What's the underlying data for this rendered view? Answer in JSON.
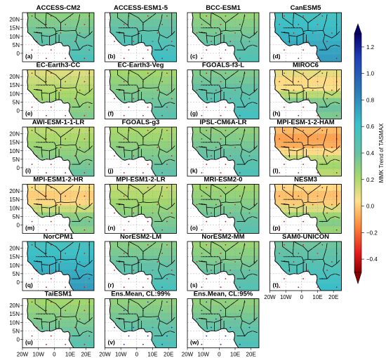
{
  "figure": {
    "colorbar": {
      "label": "MMK Trend of TASMAX",
      "ticks": [
        "1.2",
        "1.0",
        "0.8",
        "0.6",
        "0.4",
        "0.2",
        "0.0",
        "−0.2",
        "−0.4"
      ],
      "range": [
        -0.5,
        1.3
      ]
    },
    "y_ticks": [
      "20N",
      "15N",
      "10N",
      "5N",
      "0"
    ],
    "x_ticks": [
      "20W",
      "10W",
      "0",
      "10E",
      "20E"
    ],
    "panels": [
      {
        "title": "ACCESS-CM2",
        "tag": "(a)",
        "trend": 0.35
      },
      {
        "title": "ACCESS-ESM1-5",
        "tag": "(b)",
        "trend": 0.4
      },
      {
        "title": "BCC-ESM1",
        "tag": "(c)",
        "trend": 0.33
      },
      {
        "title": "CanESM5",
        "tag": "(d)",
        "trend": 0.55
      },
      {
        "title": "EC-Earth3-CC",
        "tag": "(e)",
        "trend": 0.2
      },
      {
        "title": "EC-Earth3-Veg",
        "tag": "(f)",
        "trend": 0.3
      },
      {
        "title": "FGOALS-f3-L",
        "tag": "(g)",
        "trend": 0.38
      },
      {
        "title": "MIROC6",
        "tag": "(h)",
        "trend": 0.18
      },
      {
        "title": "AWI-ESM-1-1-LR",
        "tag": "(i)",
        "trend": 0.25
      },
      {
        "title": "FGOALS-g3",
        "tag": "(j)",
        "trend": 0.28
      },
      {
        "title": "IPSL-CM6A-LR",
        "tag": "(k)",
        "trend": 0.34
      },
      {
        "title": "MPI-ESM-1-2-HAM",
        "tag": "(l)",
        "trend": 0.05
      },
      {
        "title": "MPI-ESM1-2-HR",
        "tag": "(m)",
        "trend": 0.15
      },
      {
        "title": "MPI-ESM1-2-LR",
        "tag": "(n)",
        "trend": 0.24
      },
      {
        "title": "MRI-ESM2-0",
        "tag": "(o)",
        "trend": 0.3
      },
      {
        "title": "NESM3",
        "tag": "(p)",
        "trend": 0.12
      },
      {
        "title": "NorCPM1",
        "tag": "(q)",
        "trend": 0.55
      },
      {
        "title": "NorESM2-LM",
        "tag": "(r)",
        "trend": 0.36
      },
      {
        "title": "NorESM2-MM",
        "tag": "(s)",
        "trend": 0.32
      },
      {
        "title": "SAM0-UNICON",
        "tag": "(t)",
        "trend": 0.42
      },
      {
        "title": "TaiESM1",
        "tag": "(u)",
        "trend": 0.3
      },
      {
        "title": "Ens.Mean, CL:99%",
        "tag": "(v)",
        "trend": 0.34
      },
      {
        "title": "Ens.Mean, CL:95%",
        "tag": "(w)",
        "trend": 0.34
      }
    ]
  }
}
